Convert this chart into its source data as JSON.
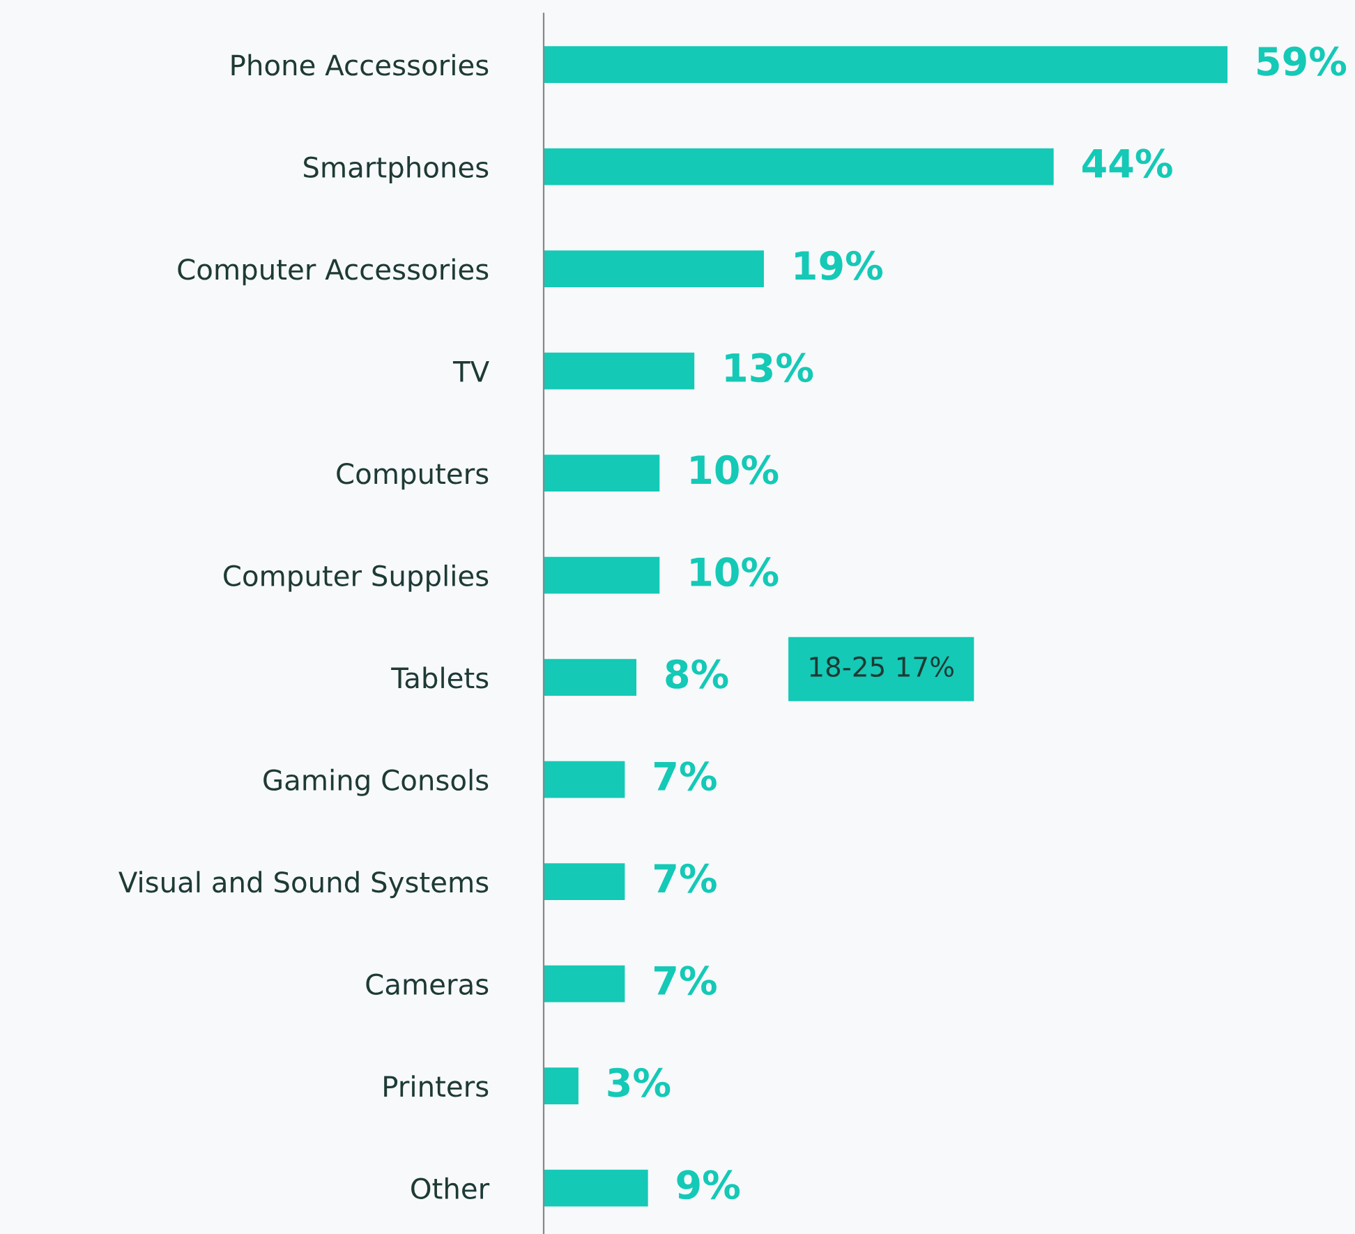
{
  "chart_data": {
    "type": "bar",
    "orientation": "horizontal",
    "categories": [
      "Phone Accessories",
      "Smartphones",
      "Computer Accessories",
      "TV",
      "Computers",
      "Computer Supplies",
      "Tablets",
      "Gaming Consols",
      "Visual and Sound Systems",
      "Cameras",
      "Printers",
      "Other"
    ],
    "values": [
      59,
      44,
      19,
      13,
      10,
      10,
      8,
      7,
      7,
      7,
      3,
      9
    ],
    "value_labels": [
      "59%",
      "44%",
      "19%",
      "13%",
      "10%",
      "10%",
      "8%",
      "7%",
      "7%",
      "7%",
      "3%",
      "9%"
    ],
    "color": "#14c9b6",
    "xlim": [
      0,
      70
    ],
    "tick_labels": "y",
    "grid": false,
    "legend": false,
    "annotations": [
      "18-25 17%"
    ]
  }
}
